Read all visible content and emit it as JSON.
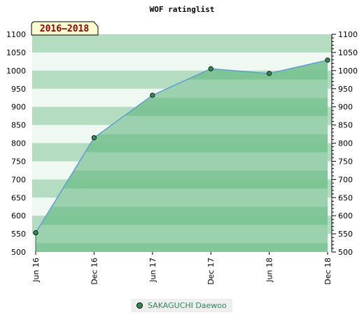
{
  "chart_data": {
    "type": "area",
    "title": "WOF ratinglist",
    "badge": "2016–2018",
    "ylim": [
      500,
      1100
    ],
    "yticks": [
      500,
      550,
      600,
      650,
      700,
      750,
      800,
      850,
      900,
      950,
      1000,
      1050,
      1100
    ],
    "categories": [
      "Jun 16",
      "Dec 16",
      "Jun 17",
      "Dec 17",
      "Jun 18",
      "Dec 18"
    ],
    "series": [
      {
        "name": "SAKAGUCHI Daewoo",
        "values": [
          553,
          815,
          932,
          1005,
          992,
          1029
        ]
      }
    ],
    "legend_position": "bottom-center",
    "colors": {
      "band_dark": "#7bc394",
      "band_mid": "#b3dcc1",
      "band_light": "#eff8f1",
      "line": "#5b9bd5",
      "marker": "#2e8b57"
    }
  }
}
